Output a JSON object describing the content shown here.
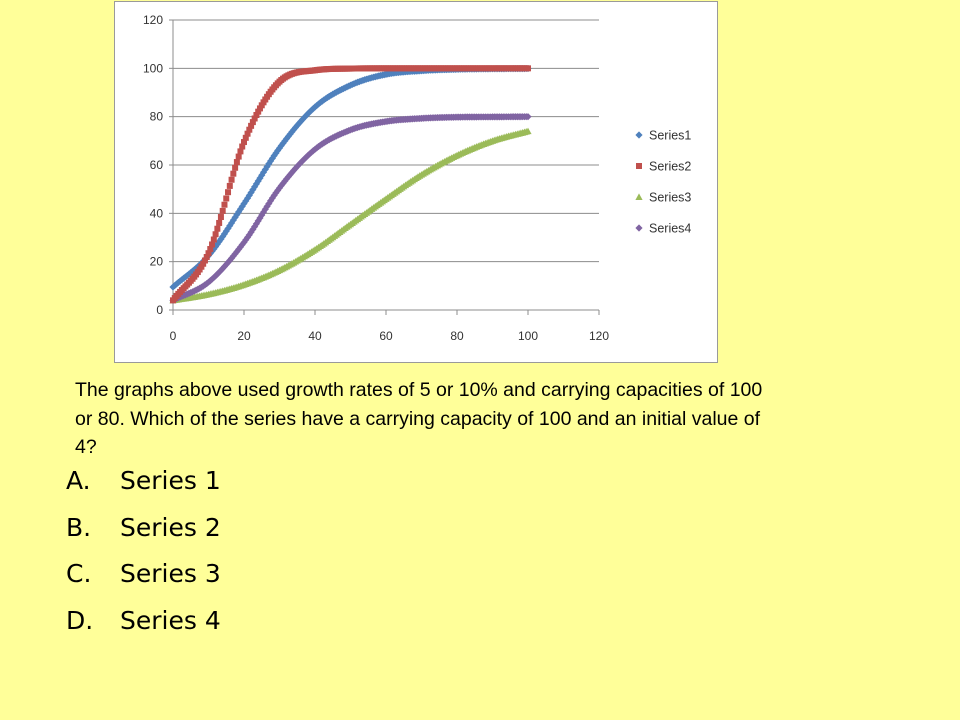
{
  "question": "The graphs above used growth rates of 5 or 10% and carrying capacities of 100 or 80.   Which of the series have a carrying capacity of 100 and an initial value of 4?",
  "options": [
    {
      "letter": "A.",
      "text": "Series 1"
    },
    {
      "letter": "B.",
      "text": "Series 2"
    },
    {
      "letter": "C.",
      "text": "Series 3"
    },
    {
      "letter": "D.",
      "text": "Series 4"
    }
  ],
  "chart_data": {
    "type": "scatter",
    "title": "",
    "xlabel": "",
    "ylabel": "",
    "xlim": [
      0,
      120
    ],
    "ylim": [
      0,
      120
    ],
    "xticks": [
      "0",
      "20",
      "40",
      "60",
      "80",
      "100",
      "120"
    ],
    "yticks": [
      "0",
      "20",
      "40",
      "60",
      "80",
      "100",
      "120"
    ],
    "grid": "horizontal",
    "legend_position": "right",
    "x": [
      0,
      10,
      20,
      30,
      40,
      50,
      60,
      70,
      80,
      90,
      100
    ],
    "series": [
      {
        "name": "Series1",
        "color": "#4F81BD",
        "marker": "diamond",
        "values": [
          9.5,
          22.5,
          44,
          67,
          84,
          93,
          97.5,
          99,
          99.6,
          99.8,
          99.9
        ]
      },
      {
        "name": "Series2",
        "color": "#C0504D",
        "marker": "square",
        "values": [
          4,
          23.5,
          69.5,
          94.5,
          99.2,
          99.9,
          100,
          100,
          100,
          100,
          100
        ]
      },
      {
        "name": "Series3",
        "color": "#9BBB59",
        "marker": "triangle",
        "values": [
          4,
          6.5,
          10.5,
          16.5,
          25,
          35.5,
          46,
          56,
          64,
          70,
          74
        ]
      },
      {
        "name": "Series4",
        "color": "#8064A2",
        "marker": "diamond",
        "values": [
          4,
          11.5,
          28,
          50.5,
          66.5,
          74.5,
          78,
          79.3,
          79.8,
          79.9,
          80
        ]
      }
    ]
  }
}
